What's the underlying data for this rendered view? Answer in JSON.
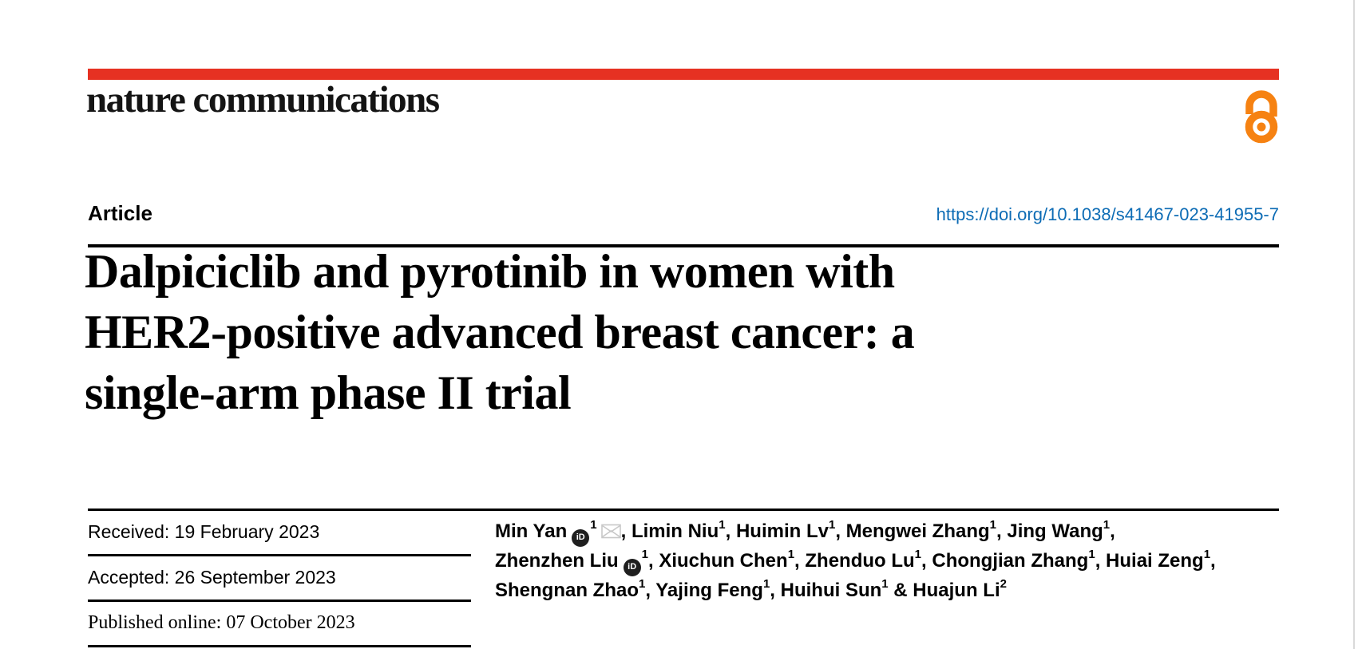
{
  "brand": {
    "logo_text": "nature communications",
    "accent_color": "#e63122",
    "open_access_color": "#f68212"
  },
  "article_header": {
    "label": "Article",
    "doi": "https://doi.org/10.1038/s41467-023-41955-7",
    "doi_color": "#0d6cb5"
  },
  "title": "Dalpiciclib and pyrotinib in women with\nHER2-positive advanced breast cancer: a\nsingle-arm phase II trial",
  "dates": [
    {
      "text": "Received: 19 February 2023",
      "serif": false
    },
    {
      "text": "Accepted: 26 September 2023",
      "serif": false
    },
    {
      "text": "Published online: 07 October 2023",
      "serif": true
    }
  ],
  "icons": {
    "orcid_label": "iD",
    "orcid_color": "#1f1f1f",
    "mail_color": "#c8c8c8"
  },
  "authors": {
    "lines": [
      [
        {
          "name": "Min Yan",
          "orcid": true,
          "sup": "1",
          "email": true,
          "sep": ", "
        },
        {
          "name": "Limin Niu",
          "sup": "1",
          "sep": ", "
        },
        {
          "name": "Huimin Lv",
          "sup": "1",
          "sep": ", "
        },
        {
          "name": "Mengwei Zhang",
          "sup": "1",
          "sep": ", "
        },
        {
          "name": "Jing Wang",
          "sup": "1",
          "sep": ","
        }
      ],
      [
        {
          "name": "Zhenzhen Liu",
          "orcid": true,
          "sup": "1",
          "sep": ", "
        },
        {
          "name": "Xiuchun Chen",
          "sup": "1",
          "sep": ", "
        },
        {
          "name": "Zhenduo Lu",
          "sup": "1",
          "sep": ", "
        },
        {
          "name": "Chongjian Zhang",
          "sup": "1",
          "sep": ", "
        },
        {
          "name": "Huiai Zeng",
          "sup": "1",
          "sep": ","
        }
      ],
      [
        {
          "name": "Shengnan Zhao",
          "sup": "1",
          "sep": ", "
        },
        {
          "name": "Yajing Feng",
          "sup": "1",
          "sep": ", "
        },
        {
          "name": "Huihui Sun",
          "sup": "1",
          "sep": " & "
        },
        {
          "name": "Huajun Li",
          "sup": "2",
          "sep": ""
        }
      ]
    ]
  }
}
